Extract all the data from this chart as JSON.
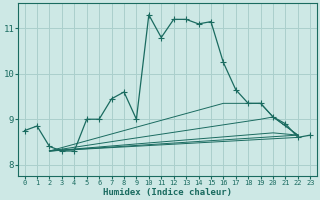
{
  "background_color": "#cde8e5",
  "grid_color": "#aacfcc",
  "line_color": "#1a6b60",
  "xlabel": "Humidex (Indice chaleur)",
  "xlim": [
    -0.5,
    23.5
  ],
  "ylim": [
    7.75,
    11.55
  ],
  "yticks": [
    8,
    9,
    10,
    11
  ],
  "xticks": [
    0,
    1,
    2,
    3,
    4,
    5,
    6,
    7,
    8,
    9,
    10,
    11,
    12,
    13,
    14,
    15,
    16,
    17,
    18,
    19,
    20,
    21,
    22,
    23
  ],
  "main_curve": {
    "x": [
      0,
      1,
      2,
      3,
      4,
      5,
      6,
      7,
      8,
      9,
      10,
      11,
      12,
      13,
      14,
      15,
      16,
      17,
      18,
      19,
      20,
      21,
      22,
      23
    ],
    "y": [
      8.75,
      8.85,
      8.4,
      8.3,
      8.3,
      9.0,
      9.0,
      9.45,
      9.6,
      9.0,
      11.3,
      10.8,
      11.2,
      11.2,
      11.1,
      11.15,
      10.25,
      9.65,
      9.35,
      9.35,
      9.05,
      8.9,
      8.6,
      8.65
    ]
  },
  "fan_curves": [
    {
      "x": [
        2,
        22
      ],
      "y": [
        8.3,
        8.6
      ]
    },
    {
      "x": [
        2,
        22
      ],
      "y": [
        8.3,
        8.65
      ]
    },
    {
      "x": [
        2,
        20,
        22
      ],
      "y": [
        8.3,
        8.7,
        8.65
      ]
    },
    {
      "x": [
        2,
        19,
        20,
        22
      ],
      "y": [
        8.3,
        9.0,
        9.05,
        8.65
      ]
    },
    {
      "x": [
        2,
        16,
        18,
        19,
        20,
        22
      ],
      "y": [
        8.3,
        9.35,
        9.35,
        9.35,
        9.05,
        8.65
      ]
    }
  ]
}
